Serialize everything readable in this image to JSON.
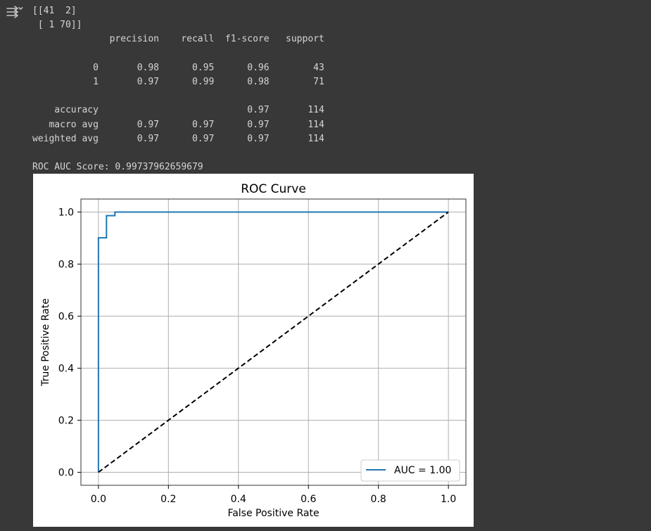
{
  "output_icon": "output-expand-icon",
  "console": {
    "lines": [
      "[[41  2]",
      " [ 1 70]]",
      "              precision    recall  f1-score   support",
      "",
      "           0       0.98      0.95      0.96        43",
      "           1       0.97      0.99      0.98        71",
      "",
      "    accuracy                           0.97       114",
      "   macro avg       0.97      0.97      0.97       114",
      "weighted avg       0.97      0.97      0.97       114",
      "",
      "ROC AUC Score: 0.99737962659679"
    ]
  },
  "chart_data": {
    "type": "line",
    "title": "ROC Curve",
    "xlabel": "False Positive Rate",
    "ylabel": "True Positive Rate",
    "xlim": [
      -0.05,
      1.05
    ],
    "ylim": [
      -0.05,
      1.05
    ],
    "xticks": [
      0.0,
      0.2,
      0.4,
      0.6,
      0.8,
      1.0
    ],
    "yticks": [
      0.0,
      0.2,
      0.4,
      0.6,
      0.8,
      1.0
    ],
    "xtick_labels": [
      "0.0",
      "0.2",
      "0.4",
      "0.6",
      "0.8",
      "1.0"
    ],
    "ytick_labels": [
      "0.0",
      "0.2",
      "0.4",
      "0.6",
      "0.8",
      "1.0"
    ],
    "grid": true,
    "legend_position": "lower-right",
    "series": [
      {
        "name": "AUC = 1.00",
        "color": "#1f77b4",
        "line_style": "solid",
        "x": [
          0.0,
          0.0,
          0.0,
          0.023,
          0.023,
          0.047,
          0.047,
          1.0
        ],
        "y": [
          0.0,
          0.014,
          0.901,
          0.901,
          0.986,
          0.986,
          1.0,
          1.0
        ]
      },
      {
        "color": "#000000",
        "line_style": "dashed",
        "x": [
          0.0,
          1.0
        ],
        "y": [
          0.0,
          1.0
        ]
      }
    ]
  }
}
